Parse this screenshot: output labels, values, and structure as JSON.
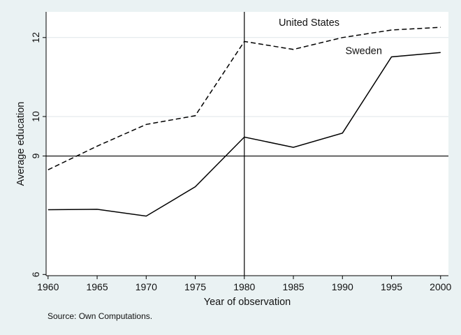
{
  "chart_data": {
    "type": "line",
    "title": "",
    "xlabel": "Year of observation",
    "ylabel": "Average education",
    "source_note": "Source: Own Computations.",
    "x": [
      1960,
      1965,
      1970,
      1975,
      1980,
      1985,
      1990,
      1995,
      2000
    ],
    "xlim": [
      1959.8,
      2000.8
    ],
    "ylim": [
      5.97,
      12.65
    ],
    "xticks": [
      1960,
      1965,
      1970,
      1975,
      1980,
      1985,
      1990,
      1995,
      2000
    ],
    "yticks": [
      6,
      9,
      10,
      12
    ],
    "xtick_labels": [
      "1960",
      "1965",
      "1970",
      "1975",
      "1980",
      "1985",
      "1990",
      "1995",
      "2000"
    ],
    "ytick_labels": [
      "6",
      "9",
      "10",
      "12"
    ],
    "grid": "horizontal at 10 and 12",
    "reference_lines": {
      "x": 1980,
      "y": 9
    },
    "series": [
      {
        "name": "United States",
        "line_style": "dashed",
        "values": [
          8.65,
          9.25,
          9.8,
          10.02,
          11.9,
          11.7,
          12.0,
          12.19,
          12.26
        ]
      },
      {
        "name": "Sweden",
        "line_style": "solid",
        "values": [
          7.64,
          7.65,
          7.48,
          8.22,
          9.48,
          9.22,
          9.58,
          11.51,
          11.62
        ]
      }
    ],
    "colors": {
      "background": "#eaf2f3",
      "plot_area": "#ffffff",
      "lines": "#000000",
      "gridlines": "#dfe6e8"
    }
  }
}
